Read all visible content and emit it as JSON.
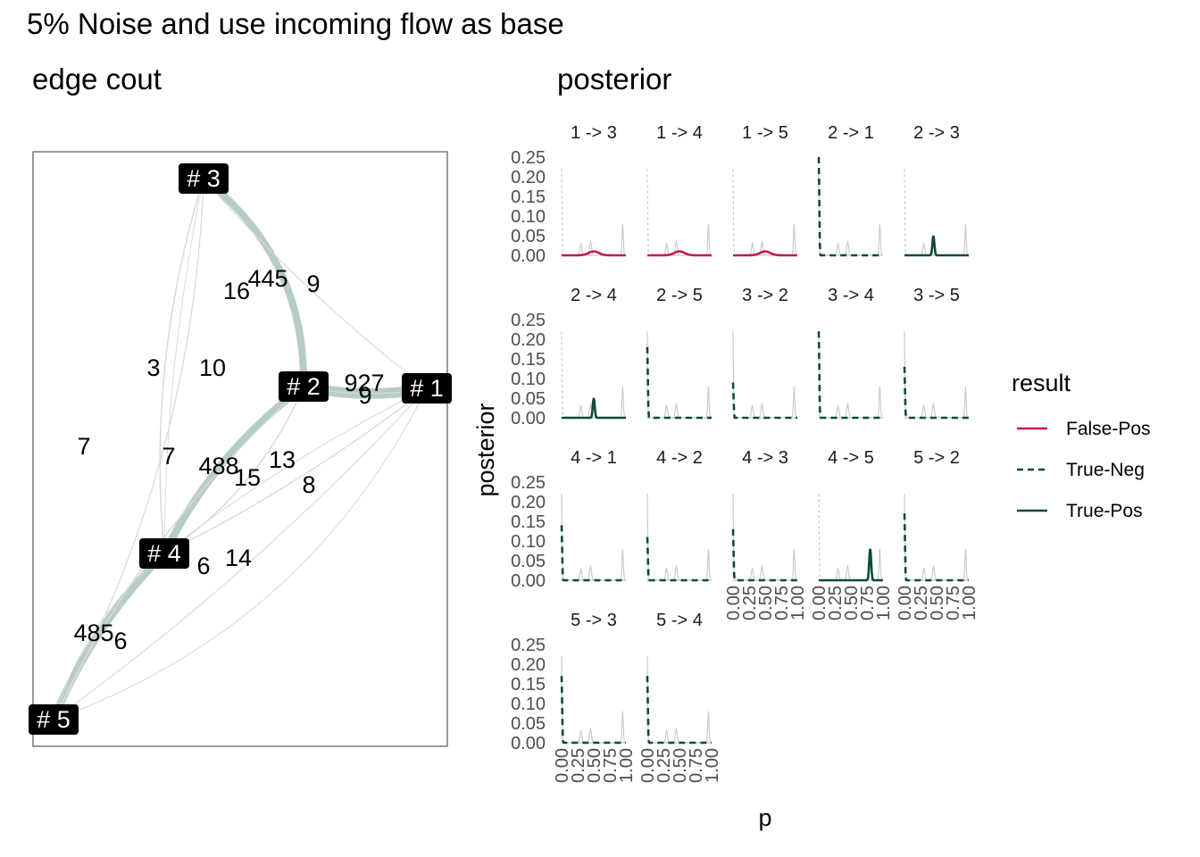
{
  "title": "5% Noise and use incoming flow as base",
  "network": {
    "title": "edge cout",
    "nodes": [
      {
        "id": "1",
        "label": "# 1"
      },
      {
        "id": "2",
        "label": "# 2"
      },
      {
        "id": "3",
        "label": "# 3"
      },
      {
        "id": "4",
        "label": "# 4"
      },
      {
        "id": "5",
        "label": "# 5"
      }
    ],
    "edges": [
      {
        "from": "3",
        "to": "2",
        "count": "445"
      },
      {
        "from": "2",
        "to": "1",
        "count": "927"
      },
      {
        "from": "2",
        "to": "4",
        "count": "488"
      },
      {
        "from": "4",
        "to": "5",
        "count": "485"
      },
      {
        "from": "3",
        "to": "4",
        "count": "16"
      },
      {
        "from": "3",
        "to": "1",
        "count": "9"
      },
      {
        "from": "3",
        "to": "5",
        "count": "3"
      },
      {
        "from": "5",
        "to": "3",
        "count": "10"
      },
      {
        "from": "2",
        "to": "1",
        "count": "9"
      },
      {
        "from": "1",
        "to": "5",
        "count": "7"
      },
      {
        "from": "1",
        "to": "4",
        "count": "7"
      },
      {
        "from": "4",
        "to": "2",
        "count": "15"
      },
      {
        "from": "4",
        "to": "1",
        "count": "13"
      },
      {
        "from": "5",
        "to": "1",
        "count": "8"
      },
      {
        "from": "4",
        "to": "3",
        "count": "6"
      },
      {
        "from": "5",
        "to": "2",
        "count": "14"
      },
      {
        "from": "5",
        "to": "4",
        "count": "6"
      }
    ]
  },
  "chart_data": {
    "type": "line",
    "title": "posterior",
    "xlabel": "p",
    "ylabel": "posterior",
    "ylim": [
      0,
      0.25
    ],
    "xlim": [
      0,
      1
    ],
    "yticks": [
      "0.00",
      "0.05",
      "0.10",
      "0.15",
      "0.20",
      "0.25"
    ],
    "xticks": [
      "0.00",
      "0.25",
      "0.50",
      "0.75",
      "1.00"
    ],
    "legend": {
      "title": "result",
      "placement": "right",
      "items": [
        {
          "name": "False-Pos",
          "color": "#c2185b",
          "dash": "solid"
        },
        {
          "name": "True-Neg",
          "color": "#0d4a3a",
          "dash": "dashed"
        },
        {
          "name": "True-Pos",
          "color": "#0d4a3a",
          "dash": "solid"
        }
      ]
    },
    "reference_color": "#c8c8c8",
    "facets": [
      {
        "label": "1 -> 3",
        "result": "False-Pos",
        "peak_p": 0.5,
        "peak": 0.01
      },
      {
        "label": "1 -> 4",
        "result": "False-Pos",
        "peak_p": 0.5,
        "peak": 0.01
      },
      {
        "label": "1 -> 5",
        "result": "False-Pos",
        "peak_p": 0.5,
        "peak": 0.01
      },
      {
        "label": "2 -> 1",
        "result": "True-Neg",
        "peak_p": 0.0,
        "peak": 0.25
      },
      {
        "label": "2 -> 3",
        "result": "True-Pos",
        "peak_p": 0.45,
        "peak": 0.05
      },
      {
        "label": "2 -> 4",
        "result": "True-Pos",
        "peak_p": 0.5,
        "peak": 0.05
      },
      {
        "label": "2 -> 5",
        "result": "True-Neg",
        "peak_p": 0.0,
        "peak": 0.18
      },
      {
        "label": "3 -> 2",
        "result": "True-Neg",
        "peak_p": 0.0,
        "peak": 0.09
      },
      {
        "label": "3 -> 4",
        "result": "True-Neg",
        "peak_p": 0.0,
        "peak": 0.22
      },
      {
        "label": "3 -> 5",
        "result": "True-Neg",
        "peak_p": 0.0,
        "peak": 0.13
      },
      {
        "label": "4 -> 1",
        "result": "True-Neg",
        "peak_p": 0.0,
        "peak": 0.14
      },
      {
        "label": "4 -> 2",
        "result": "True-Neg",
        "peak_p": 0.0,
        "peak": 0.11
      },
      {
        "label": "4 -> 3",
        "result": "True-Neg",
        "peak_p": 0.0,
        "peak": 0.13
      },
      {
        "label": "4 -> 5",
        "result": "True-Pos",
        "peak_p": 0.8,
        "peak": 0.08
      },
      {
        "label": "5 -> 2",
        "result": "True-Neg",
        "peak_p": 0.0,
        "peak": 0.17
      },
      {
        "label": "5 -> 3",
        "result": "True-Neg",
        "peak_p": 0.0,
        "peak": 0.17
      },
      {
        "label": "5 -> 4",
        "result": "True-Neg",
        "peak_p": 0.0,
        "peak": 0.17
      }
    ]
  }
}
